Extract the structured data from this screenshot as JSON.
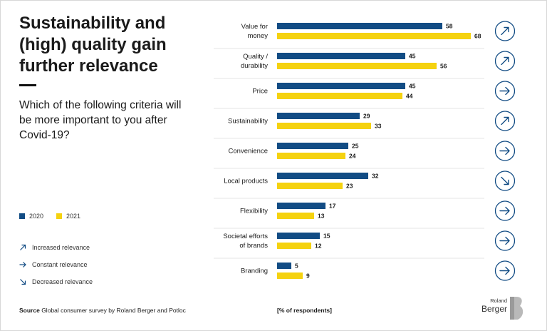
{
  "title": "Sustainability and\n(high) quality gain\nfurther relevance",
  "question": "Which of the following criteria will be more important to you after Covid-19?",
  "legend": {
    "series_2020": "2020",
    "series_2021": "2021",
    "color_2020": "#124c84",
    "color_2021": "#f5d20f"
  },
  "relevance_legend": {
    "increased": "Increased relevance",
    "constant": "Constant relevance",
    "decreased": "Decreased relevance"
  },
  "source": {
    "label": "Source",
    "text": " Global consumer survey by Roland Berger and Potloc"
  },
  "unit": "[% of respondents]",
  "logo": {
    "small": "Roland",
    "big": "Berger"
  },
  "chart_data": {
    "type": "bar",
    "orientation": "horizontal",
    "categories": [
      "Value for\nmoney",
      "Quality /\ndurability",
      "Price",
      "Sustainability",
      "Convenience",
      "Local products",
      "Flexibility",
      "Societal efforts\nof brands",
      "Branding"
    ],
    "series": [
      {
        "name": "2020",
        "color": "#124c84",
        "values": [
          58,
          45,
          45,
          29,
          25,
          32,
          17,
          15,
          5
        ]
      },
      {
        "name": "2021",
        "color": "#f5d20f",
        "values": [
          68,
          56,
          44,
          33,
          24,
          23,
          13,
          12,
          9
        ]
      }
    ],
    "trend": [
      "increased",
      "increased",
      "constant",
      "increased",
      "constant",
      "decreased",
      "constant",
      "constant",
      "constant"
    ],
    "xlim": [
      0,
      70
    ]
  }
}
